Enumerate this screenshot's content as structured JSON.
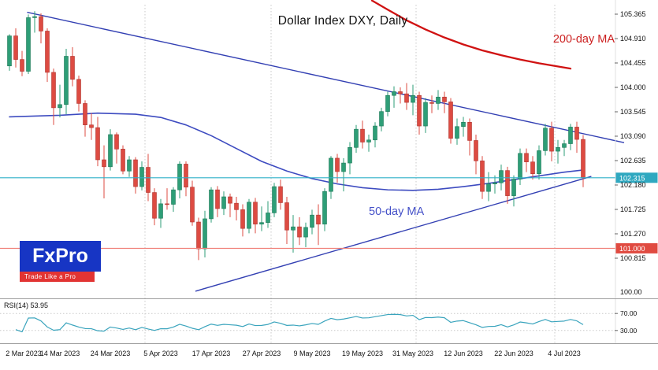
{
  "header": {
    "title": "Dollar Index DXY, Daily"
  },
  "labels": {
    "ma200": "200-day MA",
    "ma50": "50-day MA",
    "rsi": "RSI(14) 53.95"
  },
  "logo": {
    "name": "FxPro",
    "tagline": "Trade Like a Pro"
  },
  "colors": {
    "up": "#2e9e77",
    "up_border": "#1f7a59",
    "down": "#dd4b42",
    "down_border": "#b03630",
    "ma50": "#3d4bc0",
    "ma200": "#d01212",
    "trendline": "#3340b3",
    "price_line": "#2fb0c8",
    "price_tag_bg": "#2fa8c0",
    "level_line": "#f08078",
    "level_tag_bg": "#e04a40",
    "rsi": "#3aa4bd",
    "grid": "#c8c8c8",
    "axis_text": "#111111"
  },
  "chart_data": {
    "type": "candlestick",
    "symbol": "Dollar Index DXY",
    "timeframe": "Daily",
    "title": "Dollar Index DXY, Daily",
    "x_dates": [
      "2 Mar",
      "3 Mar",
      "6 Mar",
      "7 Mar",
      "8 Mar",
      "9 Mar",
      "10 Mar",
      "13 Mar",
      "14 Mar",
      "15 Mar",
      "16 Mar",
      "17 Mar",
      "20 Mar",
      "21 Mar",
      "22 Mar",
      "23 Mar",
      "24 Mar",
      "27 Mar",
      "28 Mar",
      "29 Mar",
      "30 Mar",
      "31 Mar",
      "3 Apr",
      "4 Apr",
      "5 Apr",
      "6 Apr",
      "7 Apr",
      "10 Apr",
      "11 Apr",
      "12 Apr",
      "13 Apr",
      "14 Apr",
      "17 Apr",
      "18 Apr",
      "19 Apr",
      "20 Apr",
      "21 Apr",
      "24 Apr",
      "25 Apr",
      "26 Apr",
      "27 Apr",
      "28 Apr",
      "1 May",
      "2 May",
      "3 May",
      "4 May",
      "5 May",
      "8 May",
      "9 May",
      "10 May",
      "11 May",
      "12 May",
      "15 May",
      "16 May",
      "17 May",
      "18 May",
      "19 May",
      "22 May",
      "23 May",
      "24 May",
      "25 May",
      "26 May",
      "29 May",
      "30 May",
      "31 May",
      "1 Jun",
      "2 Jun",
      "5 Jun",
      "6 Jun",
      "7 Jun",
      "8 Jun",
      "9 Jun",
      "12 Jun",
      "13 Jun",
      "14 Jun",
      "15 Jun",
      "16 Jun",
      "19 Jun",
      "20 Jun",
      "21 Jun",
      "22 Jun",
      "23 Jun",
      "26 Jun",
      "27 Jun",
      "28 Jun",
      "29 Jun",
      "30 Jun",
      "3 Jul",
      "4 Jul",
      "5 Jul",
      "6 Jul",
      "7 Jul"
    ],
    "candles": [
      [
        104.4,
        104.99,
        104.31,
        104.96
      ],
      [
        104.96,
        105.1,
        104.37,
        104.52
      ],
      [
        104.52,
        104.68,
        104.21,
        104.3
      ],
      [
        104.3,
        105.36,
        104.25,
        105.3
      ],
      [
        105.3,
        105.42,
        105.02,
        105.32
      ],
      [
        105.32,
        105.38,
        104.82,
        105.05
      ],
      [
        105.05,
        105.1,
        104.1,
        104.28
      ],
      [
        104.28,
        104.35,
        103.3,
        103.62
      ],
      [
        103.62,
        104.05,
        103.44,
        103.68
      ],
      [
        103.68,
        104.72,
        103.5,
        104.58
      ],
      [
        104.58,
        104.75,
        104.02,
        104.15
      ],
      [
        104.15,
        104.22,
        103.55,
        103.7
      ],
      [
        103.7,
        103.76,
        103.08,
        103.3
      ],
      [
        103.3,
        103.52,
        103.02,
        103.25
      ],
      [
        103.25,
        103.45,
        102.53,
        102.65
      ],
      [
        102.65,
        102.92,
        101.93,
        102.52
      ],
      [
        102.52,
        103.22,
        102.45,
        103.12
      ],
      [
        103.12,
        103.16,
        102.58,
        102.85
      ],
      [
        102.85,
        102.92,
        102.38,
        102.44
      ],
      [
        102.44,
        102.72,
        102.33,
        102.65
      ],
      [
        102.65,
        102.7,
        102.02,
        102.15
      ],
      [
        102.15,
        102.62,
        102.08,
        102.51
      ],
      [
        102.51,
        102.76,
        101.88,
        102.04
      ],
      [
        102.04,
        102.12,
        101.43,
        101.56
      ],
      [
        101.56,
        101.92,
        101.38,
        101.83
      ],
      [
        101.83,
        102.12,
        101.72,
        101.82
      ],
      [
        101.82,
        102.14,
        101.68,
        102.09
      ],
      [
        102.09,
        102.62,
        101.93,
        102.57
      ],
      [
        102.57,
        102.62,
        101.97,
        102.14
      ],
      [
        102.14,
        102.26,
        101.42,
        101.49
      ],
      [
        101.49,
        101.57,
        100.78,
        100.99
      ],
      [
        100.99,
        101.7,
        100.83,
        101.55
      ],
      [
        101.55,
        102.14,
        101.48,
        102.09
      ],
      [
        102.09,
        102.16,
        101.58,
        101.74
      ],
      [
        101.74,
        102.06,
        101.62,
        101.96
      ],
      [
        101.96,
        102.02,
        101.58,
        101.84
      ],
      [
        101.84,
        101.96,
        101.52,
        101.72
      ],
      [
        101.72,
        101.82,
        101.22,
        101.37
      ],
      [
        101.37,
        101.92,
        101.28,
        101.86
      ],
      [
        101.86,
        101.94,
        101.28,
        101.45
      ],
      [
        101.45,
        101.78,
        101.32,
        101.48
      ],
      [
        101.48,
        101.88,
        101.38,
        101.66
      ],
      [
        101.66,
        102.22,
        101.58,
        102.15
      ],
      [
        102.15,
        102.28,
        101.72,
        101.85
      ],
      [
        101.85,
        101.96,
        101.08,
        101.34
      ],
      [
        101.34,
        101.62,
        100.92,
        101.4
      ],
      [
        101.4,
        101.58,
        101.06,
        101.21
      ],
      [
        101.21,
        101.48,
        101.02,
        101.39
      ],
      [
        101.39,
        101.72,
        101.26,
        101.62
      ],
      [
        101.62,
        101.82,
        101.06,
        101.45
      ],
      [
        101.45,
        102.12,
        101.32,
        102.06
      ],
      [
        102.06,
        102.72,
        101.92,
        102.68
      ],
      [
        102.68,
        102.76,
        102.22,
        102.43
      ],
      [
        102.43,
        102.68,
        102.06,
        102.59
      ],
      [
        102.59,
        102.98,
        102.38,
        102.88
      ],
      [
        102.88,
        103.3,
        102.78,
        103.22
      ],
      [
        103.22,
        103.38,
        102.86,
        102.98
      ],
      [
        102.98,
        103.12,
        102.8,
        103.02
      ],
      [
        103.02,
        103.35,
        102.88,
        103.28
      ],
      [
        103.28,
        103.62,
        103.18,
        103.55
      ],
      [
        103.55,
        103.92,
        103.46,
        103.85
      ],
      [
        103.85,
        104.02,
        103.62,
        103.92
      ],
      [
        103.92,
        104.0,
        103.7,
        103.88
      ],
      [
        103.88,
        104.08,
        103.58,
        103.72
      ],
      [
        103.72,
        104.05,
        103.48,
        103.85
      ],
      [
        103.85,
        103.92,
        103.12,
        103.28
      ],
      [
        103.28,
        103.8,
        103.15,
        103.72
      ],
      [
        103.72,
        103.85,
        103.52,
        103.7
      ],
      [
        103.7,
        103.95,
        103.58,
        103.82
      ],
      [
        103.82,
        103.92,
        103.52,
        103.73
      ],
      [
        103.73,
        103.8,
        102.95,
        103.05
      ],
      [
        103.05,
        103.42,
        102.93,
        103.27
      ],
      [
        103.27,
        103.45,
        103.08,
        103.35
      ],
      [
        103.35,
        103.42,
        102.73,
        103.01
      ],
      [
        103.01,
        103.12,
        102.38,
        102.63
      ],
      [
        102.63,
        102.72,
        101.92,
        102.06
      ],
      [
        102.06,
        102.42,
        101.88,
        102.2
      ],
      [
        102.2,
        102.36,
        102.02,
        102.22
      ],
      [
        102.22,
        102.56,
        102.08,
        102.45
      ],
      [
        102.45,
        102.52,
        101.83,
        101.98
      ],
      [
        101.98,
        102.36,
        101.78,
        102.29
      ],
      [
        102.29,
        102.86,
        102.18,
        102.77
      ],
      [
        102.77,
        102.86,
        102.42,
        102.61
      ],
      [
        102.61,
        102.72,
        102.28,
        102.39
      ],
      [
        102.39,
        102.92,
        102.28,
        102.82
      ],
      [
        102.82,
        103.32,
        102.73,
        103.24
      ],
      [
        103.24,
        103.36,
        102.62,
        102.81
      ],
      [
        102.81,
        103.02,
        102.58,
        102.88
      ],
      [
        102.88,
        103.02,
        102.72,
        102.95
      ],
      [
        102.95,
        103.32,
        102.83,
        103.26
      ],
      [
        103.26,
        103.36,
        102.78,
        103.03
      ],
      [
        103.03,
        103.11,
        102.14,
        102.315
      ]
    ],
    "tick_indices": [
      0,
      8,
      16,
      24,
      32,
      40,
      48,
      56,
      64,
      72,
      80,
      88
    ],
    "tick_labels": [
      "2 Mar 2023",
      "14 Mar 2023",
      "24 Mar 2023",
      "5 Apr 2023",
      "17 Apr 2023",
      "27 Apr 2023",
      "9 May 2023",
      "19 May 2023",
      "31 May 2023",
      "12 Jun 2023",
      "22 Jun 2023",
      "4 Jul 2023"
    ],
    "month_separator_positions": [
      21.5,
      41.5,
      64.5,
      86.5
    ],
    "y_axis_labels": [
      "105.365",
      "104.910",
      "104.455",
      "104.000",
      "103.545",
      "103.090",
      "102.635",
      "102.180",
      "101.725",
      "101.270",
      "100.815"
    ],
    "y_axis_values": [
      105.365,
      104.91,
      104.455,
      104.0,
      103.545,
      103.09,
      102.635,
      102.18,
      101.725,
      101.27,
      100.815
    ],
    "y_bottom_label": "100.00",
    "ma50": {
      "label": "50-day MA",
      "points": [
        [
          0,
          103.45
        ],
        [
          8,
          103.48
        ],
        [
          14,
          103.52
        ],
        [
          20,
          103.5
        ],
        [
          24,
          103.44
        ],
        [
          28,
          103.3
        ],
        [
          32,
          103.1
        ],
        [
          36,
          102.86
        ],
        [
          40,
          102.62
        ],
        [
          44,
          102.44
        ],
        [
          48,
          102.3
        ],
        [
          52,
          102.2
        ],
        [
          56,
          102.13
        ],
        [
          60,
          102.09
        ],
        [
          64,
          102.08
        ],
        [
          68,
          102.1
        ],
        [
          72,
          102.15
        ],
        [
          76,
          102.21
        ],
        [
          80,
          102.28
        ],
        [
          84,
          102.35
        ],
        [
          88,
          102.42
        ],
        [
          91,
          102.46
        ]
      ]
    },
    "ma200": {
      "label": "200-day MA",
      "points": [
        [
          57.5,
          105.62
        ],
        [
          60,
          105.45
        ],
        [
          63,
          105.25
        ],
        [
          66,
          105.08
        ],
        [
          69,
          104.93
        ],
        [
          72,
          104.8
        ],
        [
          75,
          104.69
        ],
        [
          78,
          104.6
        ],
        [
          81,
          104.52
        ],
        [
          84,
          104.45
        ],
        [
          86.5,
          104.4
        ],
        [
          89,
          104.35
        ]
      ]
    },
    "trendlines": [
      {
        "name": "descending-resistance",
        "from": [
          2.8,
          105.4
        ],
        "to": [
          97.5,
          102.97
        ]
      },
      {
        "name": "ascending-support",
        "from": [
          29.5,
          100.2
        ],
        "to": [
          92.3,
          102.34
        ]
      }
    ],
    "hlines": [
      {
        "value": 102.315,
        "label": "102.315",
        "color_key": "current"
      },
      {
        "value": 101.0,
        "label": "101.000",
        "color_key": "level"
      }
    ],
    "rsi": {
      "period": 14,
      "value": 53.95,
      "label": "RSI(14) 53.95",
      "levels": [
        70,
        30
      ],
      "level_labels": [
        "70.00",
        "30.00"
      ]
    }
  }
}
